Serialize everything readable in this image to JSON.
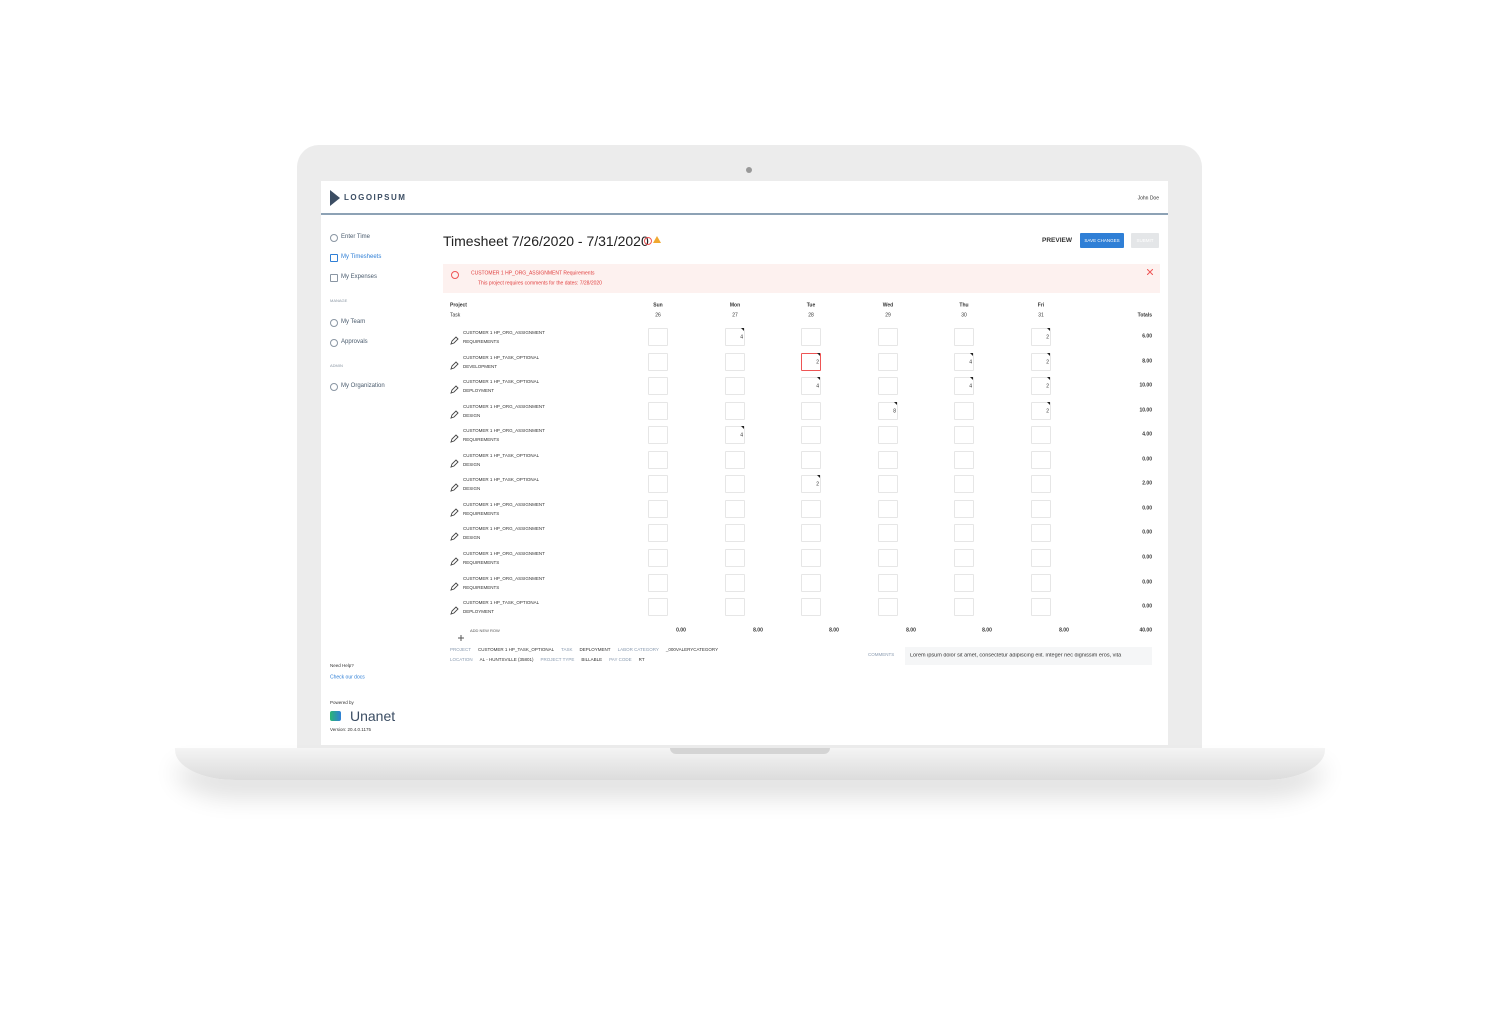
{
  "header": {
    "logo": "LOGOIPSUM",
    "user": "John Doe"
  },
  "sidebar": {
    "items": [
      "Enter Time",
      "My Timesheets",
      "My Expenses"
    ],
    "sections": [
      {
        "title": "MANAGE",
        "items": [
          "My Team",
          "Approvals"
        ]
      },
      {
        "title": "ADMIN",
        "items": [
          "My Organization"
        ]
      }
    ],
    "help": {
      "question": "Need Help?",
      "link": "Check our docs"
    },
    "brand": {
      "powered_by": "Powered by",
      "name": "Unanet",
      "version": "Version: 20.4.0.1175"
    }
  },
  "page": {
    "title": "Timesheet 7/26/2020 - 7/31/2020",
    "actions": [
      "PREVIEW",
      "SAVE CHANGES",
      "SUBMIT"
    ]
  },
  "alert": {
    "heading": "CUSTOMER 1 HP_ORG_ASSIGNMENT Requirements",
    "detail": "This project requires comments for the dates: 7/28/2020"
  },
  "table": {
    "project_header": "Project",
    "task_header": "Task",
    "totals_header": "Totals",
    "days": [
      {
        "name": "Sun",
        "date": 26
      },
      {
        "name": "Mon",
        "date": 27
      },
      {
        "name": "Tue",
        "date": 28
      },
      {
        "name": "Wed",
        "date": 29
      },
      {
        "name": "Thu",
        "date": 30
      },
      {
        "name": "Fri",
        "date": 31
      }
    ],
    "rows": [
      {
        "project": "CUSTOMER 1 HP_ORG_ASSIGNMENT",
        "task": "REQUIREMENTS",
        "hours": [
          null,
          4,
          null,
          null,
          null,
          2
        ],
        "total": "6.00"
      },
      {
        "project": "CUSTOMER 1 HP_TASK_OPTIONAL",
        "task": "DEVELOPMENT",
        "hours": [
          null,
          null,
          2,
          null,
          4,
          2
        ],
        "total": "8.00"
      },
      {
        "project": "CUSTOMER 1 HP_TASK_OPTIONAL",
        "task": "DEPLOYMENT",
        "hours": [
          null,
          null,
          4,
          null,
          4,
          2
        ],
        "total": "10.00"
      },
      {
        "project": "CUSTOMER 1 HP_ORG_ASSIGNMENT",
        "task": "DESIGN",
        "hours": [
          null,
          null,
          null,
          8,
          null,
          2
        ],
        "total": "10.00"
      },
      {
        "project": "CUSTOMER 1 HP_ORG_ASSIGNMENT",
        "task": "REQUIREMENTS",
        "hours": [
          null,
          4,
          null,
          null,
          null,
          null
        ],
        "total": "4.00"
      },
      {
        "project": "CUSTOMER 1 HP_TASK_OPTIONAL",
        "task": "DESIGN",
        "hours": [
          null,
          null,
          null,
          null,
          null,
          null
        ],
        "total": "0.00"
      },
      {
        "project": "CUSTOMER 1 HP_TASK_OPTIONAL",
        "task": "DESIGN",
        "hours": [
          null,
          null,
          2,
          null,
          null,
          null
        ],
        "total": "2.00"
      },
      {
        "project": "CUSTOMER 1 HP_ORG_ASSIGNMENT",
        "task": "REQUIREMENTS",
        "hours": [
          null,
          null,
          null,
          null,
          null,
          null
        ],
        "total": "0.00"
      },
      {
        "project": "CUSTOMER 1 HP_ORG_ASSIGNMENT",
        "task": "DESIGN",
        "hours": [
          null,
          null,
          null,
          null,
          null,
          null
        ],
        "total": "0.00"
      },
      {
        "project": "CUSTOMER 1 HP_ORG_ASSIGNMENT",
        "task": "REQUIREMENTS",
        "hours": [
          null,
          null,
          null,
          null,
          null,
          null
        ],
        "total": "0.00"
      },
      {
        "project": "CUSTOMER 1 HP_ORG_ASSIGNMENT",
        "task": "REQUIREMENTS",
        "hours": [
          null,
          null,
          null,
          null,
          null,
          null
        ],
        "total": "0.00"
      },
      {
        "project": "CUSTOMER 1 HP_TASK_OPTIONAL",
        "task": "DEPLOYMENT",
        "hours": [
          null,
          null,
          null,
          null,
          null,
          null
        ],
        "total": "0.00"
      }
    ],
    "add_row": "ADD NEW ROW",
    "day_totals": [
      "0.00",
      "8.00",
      "8.00",
      "8.00",
      "8.00",
      "8.00"
    ],
    "grand_total": "40.00"
  },
  "details": {
    "lines": [
      [
        {
          "label": "PROJECT",
          "value": "CUSTOMER 1 HP_TASK_OPTIONAL"
        },
        {
          "label": "TASK",
          "value": "DEPLOYMENT"
        },
        {
          "label": "LABOR CATEGORY",
          "value": "_000VALERYCATEGORY"
        }
      ],
      [
        {
          "label": "LOCATION",
          "value": "AL - HUNTSVILLE (35801)"
        },
        {
          "label": "PROJECT TYPE",
          "value": "BILLABLE"
        },
        {
          "label": "PAY CODE",
          "value": "RT"
        }
      ]
    ],
    "comments_label": "COMMENTS",
    "comments": "Lorem ipsum dolor sit amet, consectetur adipiscing elit. Integer nec dignissim eros, vita"
  }
}
